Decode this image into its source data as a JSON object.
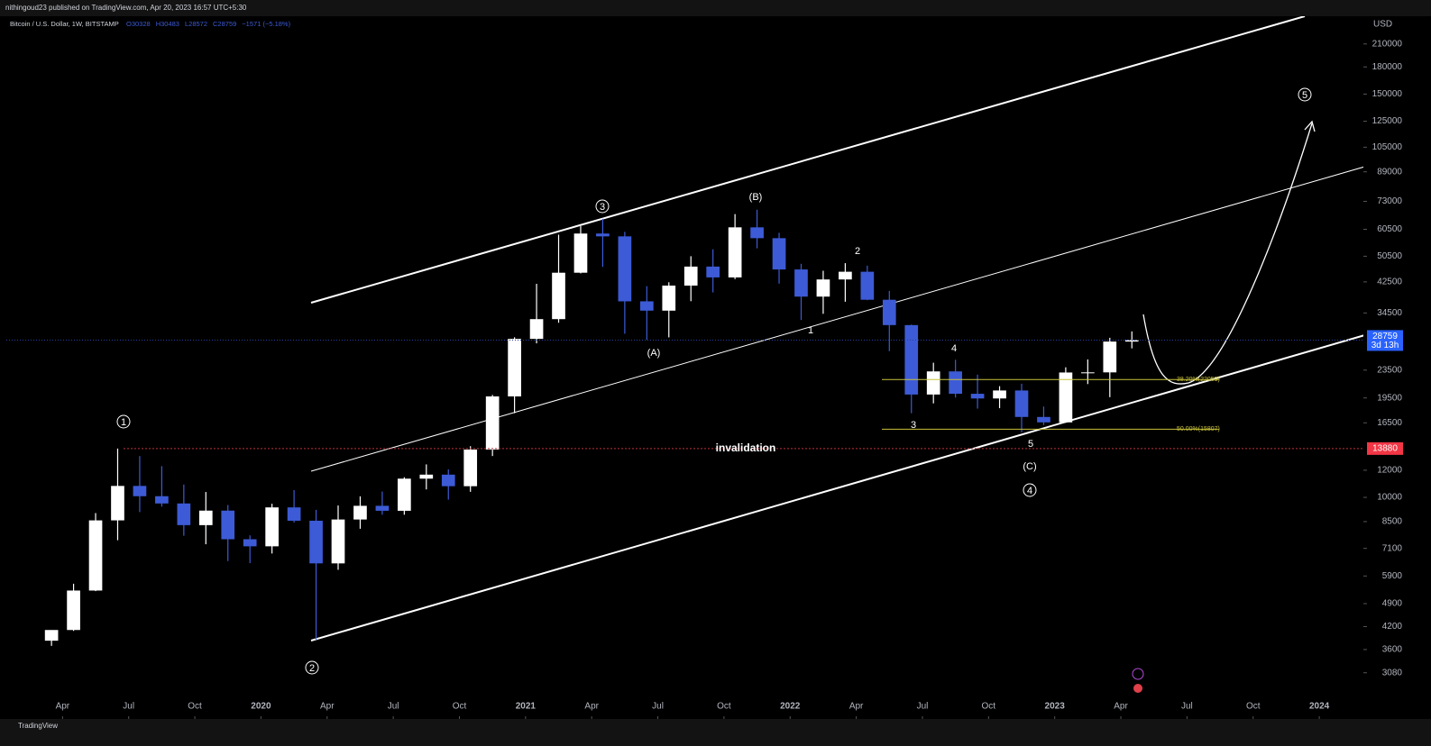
{
  "chart_data": {
    "type": "candlestick",
    "publisher": "nithingoud23 published on TradingView.com, Apr 20, 2023 16:57 UTC+5:30",
    "title": "Bitcoin / U.S. Dollar, 1W, BITSTAMP",
    "ohlc_header": [
      "O30328",
      "H30483",
      "L28572",
      "C28759",
      "−1571 (−5.18%)"
    ],
    "currency": "USD",
    "brand": "TradingView",
    "log": true,
    "up_color": "#ffffff",
    "down_color": "#3d5bd6",
    "x": [
      "2019-03",
      "2019-04",
      "2019-05",
      "2019-06",
      "2019-07",
      "2019-08",
      "2019-09",
      "2019-10",
      "2019-11",
      "2019-12",
      "2020-01",
      "2020-02",
      "2020-03",
      "2020-04",
      "2020-05",
      "2020-06",
      "2020-07",
      "2020-08",
      "2020-09",
      "2020-10",
      "2020-11",
      "2020-12",
      "2021-01",
      "2021-02",
      "2021-03",
      "2021-04",
      "2021-05",
      "2021-06",
      "2021-07",
      "2021-08",
      "2021-09",
      "2021-10",
      "2021-11",
      "2021-12",
      "2022-01",
      "2022-02",
      "2022-03",
      "2022-04",
      "2022-05",
      "2022-06",
      "2022-07",
      "2022-08",
      "2022-09",
      "2022-10",
      "2022-11",
      "2022-12",
      "2023-01",
      "2023-02",
      "2023-03",
      "2023-04"
    ],
    "open": [
      3820,
      4105,
      5350,
      8570,
      10800,
      10080,
      9600,
      8300,
      9150,
      7550,
      7200,
      9350,
      8550,
      6420,
      8620,
      9450,
      9140,
      11340,
      11650,
      10780,
      13790,
      19700,
      28990,
      33100,
      45200,
      58800,
      57700,
      37300,
      35040,
      41460,
      47100,
      43800,
      61300,
      57000,
      46200,
      38500,
      43200,
      45500,
      37700,
      31800,
      19950,
      23300,
      20050,
      19430,
      20500,
      17160,
      16550,
      23130,
      23150,
      28470
    ],
    "high": [
      4100,
      5600,
      9000,
      13880,
      13200,
      12330,
      10900,
      10370,
      9500,
      7750,
      9580,
      10500,
      9200,
      9470,
      10070,
      10400,
      11450,
      12480,
      12070,
      14100,
      19900,
      29300,
      41950,
      58350,
      61780,
      64900,
      59500,
      41300,
      42400,
      50500,
      52900,
      67000,
      69000,
      59100,
      47990,
      45800,
      48200,
      47400,
      40000,
      31900,
      24700,
      25200,
      22800,
      21100,
      21450,
      18400,
      23950,
      25250,
      29200,
      30480
    ],
    "low": [
      3690,
      4080,
      5330,
      7500,
      9060,
      9400,
      7730,
      7300,
      6520,
      6430,
      6860,
      8450,
      3850,
      6150,
      8100,
      8900,
      8900,
      10550,
      9850,
      10380,
      13200,
      17600,
      28130,
      32300,
      45000,
      47000,
      30000,
      28800,
      29280,
      37330,
      39600,
      43300,
      53250,
      42000,
      32900,
      34300,
      37200,
      37600,
      26700,
      17600,
      18800,
      19550,
      18150,
      18200,
      15480,
      16250,
      16500,
      21400,
      19600,
      27200
    ],
    "close": [
      4105,
      5350,
      8570,
      10800,
      10080,
      9600,
      8300,
      9150,
      7550,
      7200,
      9350,
      8550,
      6420,
      8620,
      9450,
      9140,
      11340,
      11650,
      10780,
      13790,
      19700,
      28990,
      33100,
      45200,
      58800,
      57700,
      37300,
      35040,
      41460,
      47100,
      43800,
      61300,
      57000,
      46200,
      38500,
      43200,
      45500,
      37700,
      31800,
      19950,
      23300,
      20050,
      19430,
      20500,
      17160,
      16550,
      23130,
      23150,
      28470,
      28759
    ],
    "xlim": [
      "2019-01",
      "2024-03"
    ],
    "xticks": [
      {
        "value": "2019-04",
        "label": "Apr"
      },
      {
        "value": "2019-07",
        "label": "Jul"
      },
      {
        "value": "2019-10",
        "label": "Oct"
      },
      {
        "value": "2020-01",
        "label": "2020"
      },
      {
        "value": "2020-04",
        "label": "Apr"
      },
      {
        "value": "2020-07",
        "label": "Jul"
      },
      {
        "value": "2020-10",
        "label": "Oct"
      },
      {
        "value": "2021-01",
        "label": "2021"
      },
      {
        "value": "2021-04",
        "label": "Apr"
      },
      {
        "value": "2021-07",
        "label": "Jul"
      },
      {
        "value": "2021-10",
        "label": "Oct"
      },
      {
        "value": "2022-01",
        "label": "2022"
      },
      {
        "value": "2022-04",
        "label": "Apr"
      },
      {
        "value": "2022-07",
        "label": "Jul"
      },
      {
        "value": "2022-10",
        "label": "Oct"
      },
      {
        "value": "2023-01",
        "label": "2023"
      },
      {
        "value": "2023-04",
        "label": "Apr"
      },
      {
        "value": "2023-07",
        "label": "Jul"
      },
      {
        "value": "2023-10",
        "label": "Oct"
      },
      {
        "value": "2024-01",
        "label": "2024"
      }
    ],
    "ylim": [
      2300,
      253000
    ],
    "yticks": [
      3080,
      3600,
      4200,
      4900,
      5900,
      7100,
      8500,
      10000,
      12000,
      16500,
      19500,
      23500,
      34500,
      42500,
      50500,
      60500,
      73000,
      89000,
      105000,
      125000,
      150000,
      180000,
      210000
    ],
    "last_price": 28759,
    "countdown": "3d 13h",
    "invalidation": {
      "label": "invalidation",
      "value": 13880
    },
    "fib_levels": [
      {
        "label": "38.20%(22059)",
        "value": 22059
      },
      {
        "label": "50.00%(15807)",
        "value": 15807
      }
    ],
    "primary_waves": [
      "1",
      "2",
      "3",
      "4",
      "5"
    ],
    "abc_waves": [
      "(A)",
      "(B)",
      "(C)"
    ],
    "minor_waves": [
      "1",
      "2",
      "3",
      "4",
      "5"
    ]
  }
}
